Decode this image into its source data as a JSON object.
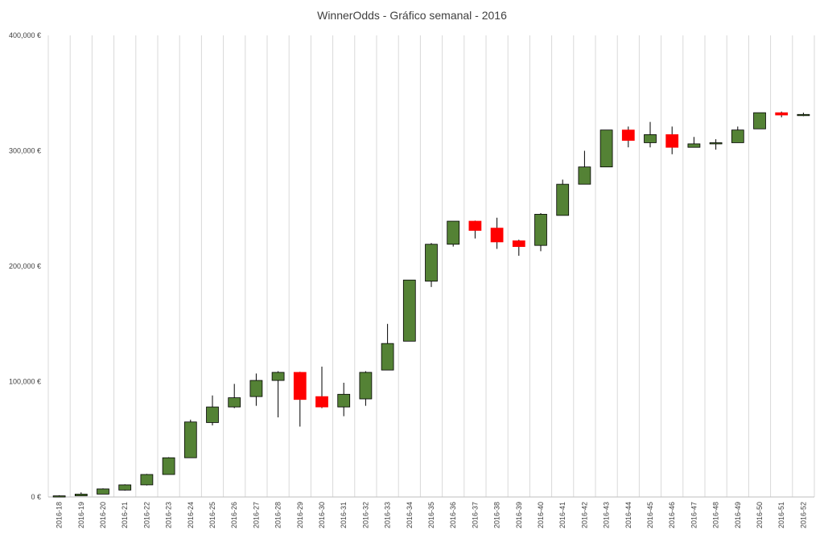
{
  "chart_data": {
    "type": "candlestick",
    "title": "WinnerOdds - Gráfico semanal - 2016",
    "xlabel": "",
    "ylabel": "",
    "ylim": [
      0,
      400000
    ],
    "y_ticks": [
      0,
      100000,
      200000,
      300000,
      400000
    ],
    "y_tick_labels": [
      "0 €",
      "100,000 €",
      "200,000 €",
      "300,000 €",
      "400,000 €"
    ],
    "grid": "vertical",
    "legend": "none",
    "colors": {
      "up": "#548235",
      "down": "#ff0000",
      "border": "#000000",
      "grid": "#d9d9d9",
      "axis": "#bfbfbf"
    },
    "categories": [
      "2016-18",
      "2016-19",
      "2016-20",
      "2016-21",
      "2016-22",
      "2016-23",
      "2016-24",
      "2016-25",
      "2016-26",
      "2016-27",
      "2016-28",
      "2016-29",
      "2016-30",
      "2016-31",
      "2016-32",
      "2016-33",
      "2016-34",
      "2016-35",
      "2016-36",
      "2016-37",
      "2016-38",
      "2016-39",
      "2016-40",
      "2016-41",
      "2016-42",
      "2016-43",
      "2016-44",
      "2016-45",
      "2016-46",
      "2016-47",
      "2016-48",
      "2016-49",
      "2016-50",
      "2016-51",
      "2016-52"
    ],
    "series": [
      {
        "values": [
          {
            "open": 0,
            "high": 1500,
            "low": 0,
            "close": 1000
          },
          {
            "open": 1000,
            "high": 4000,
            "low": 800,
            "close": 2500
          },
          {
            "open": 2500,
            "high": 7500,
            "low": 2500,
            "close": 7000
          },
          {
            "open": 6000,
            "high": 11000,
            "low": 5500,
            "close": 10500
          },
          {
            "open": 10500,
            "high": 20000,
            "low": 10000,
            "close": 19500
          },
          {
            "open": 19500,
            "high": 34500,
            "low": 19500,
            "close": 34000
          },
          {
            "open": 34000,
            "high": 67000,
            "low": 34000,
            "close": 65000
          },
          {
            "open": 64500,
            "high": 88000,
            "low": 62000,
            "close": 78000
          },
          {
            "open": 78000,
            "high": 98000,
            "low": 77000,
            "close": 86000
          },
          {
            "open": 87000,
            "high": 107000,
            "low": 79000,
            "close": 101000
          },
          {
            "open": 101000,
            "high": 109000,
            "low": 69000,
            "close": 108000
          },
          {
            "open": 108000,
            "high": 108500,
            "low": 61000,
            "close": 84500
          },
          {
            "open": 87000,
            "high": 113000,
            "low": 77000,
            "close": 78000
          },
          {
            "open": 78000,
            "high": 99000,
            "low": 70000,
            "close": 89000
          },
          {
            "open": 85000,
            "high": 109000,
            "low": 79000,
            "close": 108000
          },
          {
            "open": 110000,
            "high": 150000,
            "low": 110000,
            "close": 133000
          },
          {
            "open": 135000,
            "high": 188000,
            "low": 135000,
            "close": 188000
          },
          {
            "open": 187000,
            "high": 220000,
            "low": 182000,
            "close": 219000
          },
          {
            "open": 219000,
            "high": 239000,
            "low": 217000,
            "close": 239000
          },
          {
            "open": 239000,
            "high": 239500,
            "low": 224000,
            "close": 231000
          },
          {
            "open": 233000,
            "high": 242000,
            "low": 215000,
            "close": 221000
          },
          {
            "open": 222000,
            "high": 223000,
            "low": 209000,
            "close": 217000
          },
          {
            "open": 218000,
            "high": 246000,
            "low": 213000,
            "close": 245000
          },
          {
            "open": 244000,
            "high": 275000,
            "low": 244000,
            "close": 271000
          },
          {
            "open": 271000,
            "high": 300000,
            "low": 271000,
            "close": 286000
          },
          {
            "open": 286000,
            "high": 318000,
            "low": 286000,
            "close": 318000
          },
          {
            "open": 318000,
            "high": 321000,
            "low": 303000,
            "close": 309000
          },
          {
            "open": 307000,
            "high": 325000,
            "low": 303000,
            "close": 314000
          },
          {
            "open": 314000,
            "high": 321000,
            "low": 297000,
            "close": 303000
          },
          {
            "open": 303000,
            "high": 312000,
            "low": 303000,
            "close": 306000
          },
          {
            "open": 306000,
            "high": 310000,
            "low": 301000,
            "close": 307000
          },
          {
            "open": 307000,
            "high": 321000,
            "low": 307000,
            "close": 318000
          },
          {
            "open": 319000,
            "high": 333000,
            "low": 319000,
            "close": 333000
          },
          {
            "open": 333000,
            "high": 334000,
            "low": 329000,
            "close": 331000
          },
          {
            "open": 331000,
            "high": 333000,
            "low": 330000,
            "close": 331500
          }
        ]
      }
    ]
  }
}
